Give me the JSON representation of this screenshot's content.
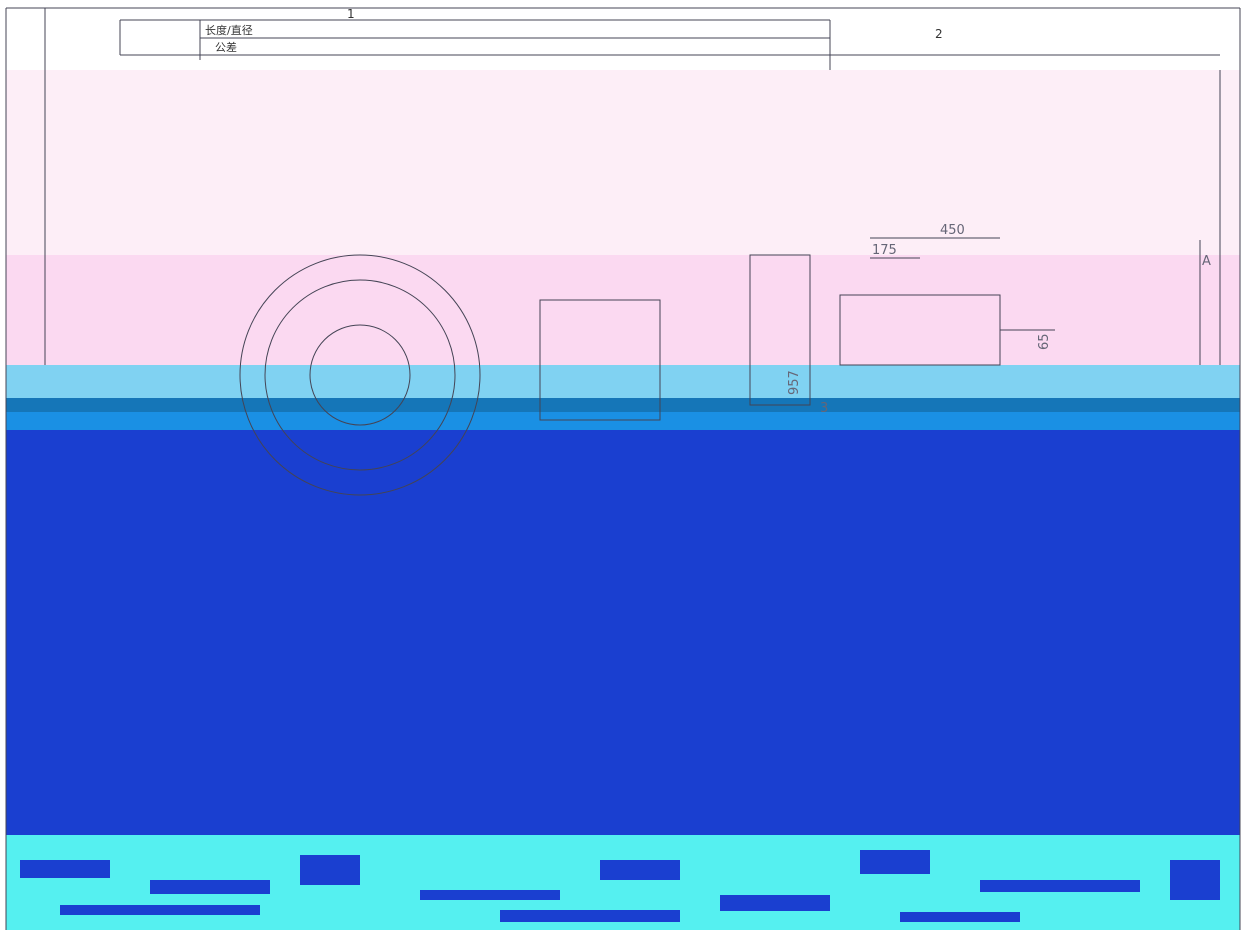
{
  "header": {
    "zone_numbers": [
      "1",
      "2"
    ],
    "tolerance_table": {
      "row_labels": [
        "长度/直径",
        "公差"
      ]
    }
  },
  "dimensions": [
    "450",
    "175",
    "65",
    "957",
    "3"
  ],
  "zone_letter": "A"
}
